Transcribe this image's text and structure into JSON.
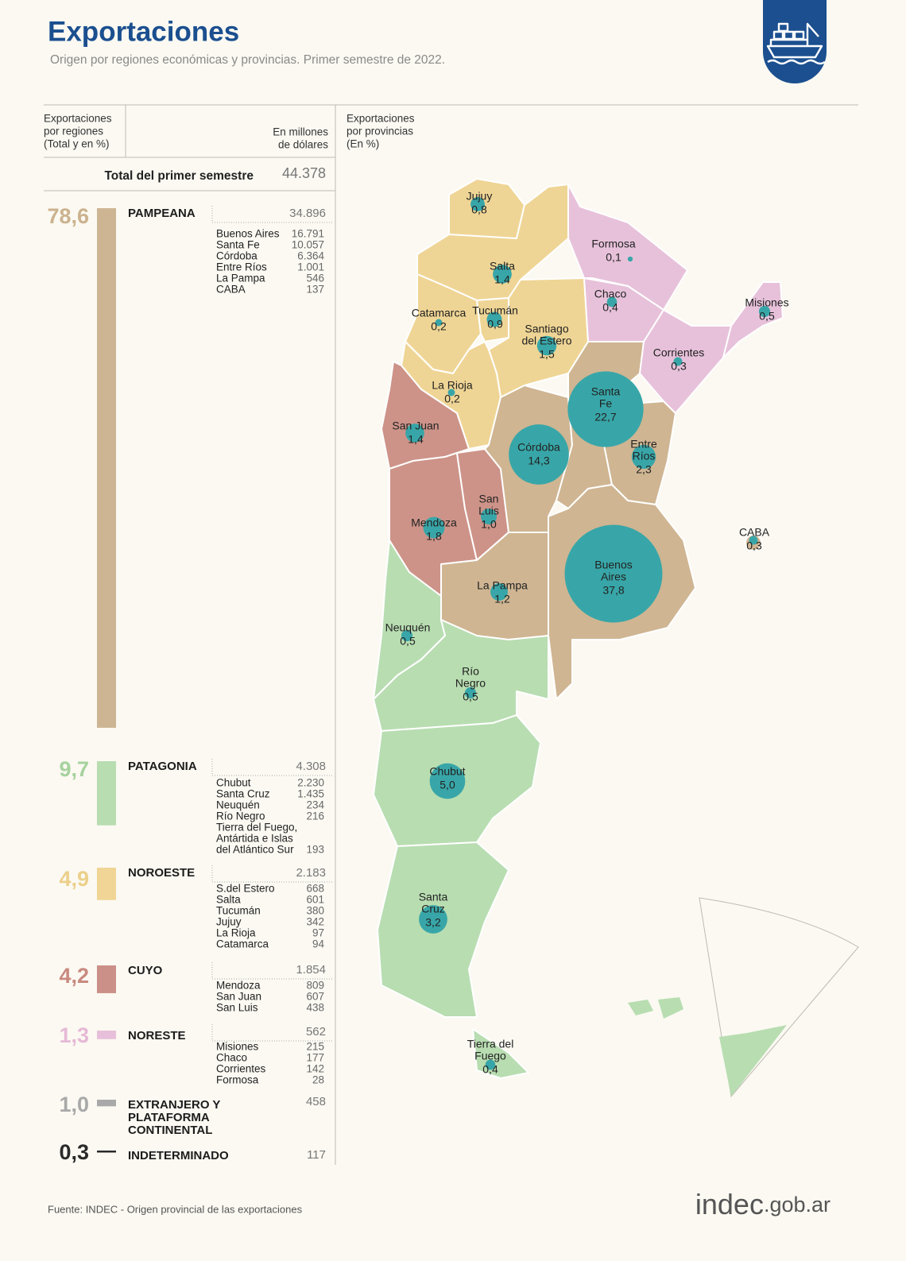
{
  "header": {
    "title": "Exportaciones",
    "subtitle": "Origen por regiones económicas y provincias. Primer semestre de 2022."
  },
  "columns": {
    "regions": [
      "Exportaciones",
      "por regiones",
      "(Total y en %)"
    ],
    "units": [
      "En millones",
      "de dólares"
    ],
    "provinces": [
      "Exportaciones",
      "por provincias",
      "(En %)"
    ]
  },
  "total": {
    "label": "Total del primer semestre",
    "value": "44.378"
  },
  "regions": [
    {
      "name": [
        "PAMPEANA"
      ],
      "pct": 78.6,
      "pct_label": "78,6",
      "total": "34.896",
      "color": "#cdb594",
      "label_color": "#cbb28e",
      "provinces": [
        {
          "name": [
            "Buenos Aires"
          ],
          "value": "16.791"
        },
        {
          "name": [
            "Santa Fe"
          ],
          "value": "10.057"
        },
        {
          "name": [
            "Córdoba"
          ],
          "value": "6.364"
        },
        {
          "name": [
            "Entre Ríos"
          ],
          "value": "1.001"
        },
        {
          "name": [
            "La Pampa"
          ],
          "value": "546"
        },
        {
          "name": [
            "CABA"
          ],
          "value": "137"
        }
      ]
    },
    {
      "name": [
        "PATAGONIA"
      ],
      "pct": 9.7,
      "pct_label": "9,7",
      "total": "4.308",
      "color": "#b7ddb0",
      "label_color": "#a6d29e",
      "provinces": [
        {
          "name": [
            "Chubut"
          ],
          "value": "2.230"
        },
        {
          "name": [
            "Santa Cruz"
          ],
          "value": "1.435"
        },
        {
          "name": [
            "Neuquén"
          ],
          "value": "234"
        },
        {
          "name": [
            "Río Negro"
          ],
          "value": "216"
        },
        {
          "name": [
            "Tierra del Fuego,",
            "Antártida e Islas",
            "del Atlántico Sur"
          ],
          "value": "193"
        }
      ]
    },
    {
      "name": [
        "NOROESTE"
      ],
      "pct": 4.9,
      "pct_label": "4,9",
      "total": "2.183",
      "color": "#f0d596",
      "label_color": "#ecd08a",
      "provinces": [
        {
          "name": [
            "S.del Estero"
          ],
          "value": "668"
        },
        {
          "name": [
            "Salta"
          ],
          "value": "601"
        },
        {
          "name": [
            "Tucumán"
          ],
          "value": "380"
        },
        {
          "name": [
            "Jujuy"
          ],
          "value": "342"
        },
        {
          "name": [
            "La Rioja"
          ],
          "value": "97"
        },
        {
          "name": [
            "Catamarca"
          ],
          "value": "94"
        }
      ]
    },
    {
      "name": [
        "CUYO"
      ],
      "pct": 4.2,
      "pct_label": "4,2",
      "total": "1.854",
      "color": "#cb9087",
      "label_color": "#c98a80",
      "provinces": [
        {
          "name": [
            "Mendoza"
          ],
          "value": "809"
        },
        {
          "name": [
            "San Juan"
          ],
          "value": "607"
        },
        {
          "name": [
            "San Luis"
          ],
          "value": "438"
        }
      ]
    },
    {
      "name": [
        "NORESTE"
      ],
      "pct": 1.3,
      "pct_label": "1,3",
      "total": "562",
      "color": "#e8bfda",
      "label_color": "#e6b9d6",
      "provinces": [
        {
          "name": [
            "Misiones"
          ],
          "value": "215"
        },
        {
          "name": [
            "Chaco"
          ],
          "value": "177"
        },
        {
          "name": [
            "Corrientes"
          ],
          "value": "142"
        },
        {
          "name": [
            "Formosa"
          ],
          "value": "28"
        }
      ]
    },
    {
      "name": [
        "EXTRANJERO Y",
        "PLATAFORMA",
        "CONTINENTAL"
      ],
      "pct": 1.0,
      "pct_label": "1,0",
      "total": "458",
      "color": "#a9a9a9",
      "label_color": "#a9a9a9",
      "provinces": []
    },
    {
      "name": [
        "INDETERMINADO"
      ],
      "pct": 0.3,
      "pct_label": "0,3",
      "total": "117",
      "color": "#2a2a2a",
      "label_color": "#2a2a2a",
      "provinces": []
    }
  ],
  "map": {
    "bubble_color": "#38a6a8",
    "provinces": [
      {
        "name": [
          "Jujuy"
        ],
        "value": 0.8,
        "label": "0,8"
      },
      {
        "name": [
          "Salta"
        ],
        "value": 1.4,
        "label": "1,4"
      },
      {
        "name": [
          "Formosa"
        ],
        "value": 0.1,
        "label": "0,1"
      },
      {
        "name": [
          "Chaco"
        ],
        "value": 0.4,
        "label": "0,4"
      },
      {
        "name": [
          "Misiones"
        ],
        "value": 0.5,
        "label": "0,5"
      },
      {
        "name": [
          "Catamarca"
        ],
        "value": 0.2,
        "label": "0,2"
      },
      {
        "name": [
          "Tucumán"
        ],
        "value": 0.9,
        "label": "0,9"
      },
      {
        "name": [
          "Santiago",
          "del Estero"
        ],
        "value": 1.5,
        "label": "1,5"
      },
      {
        "name": [
          "Corrientes"
        ],
        "value": 0.3,
        "label": "0,3"
      },
      {
        "name": [
          "La Rioja"
        ],
        "value": 0.2,
        "label": "0,2"
      },
      {
        "name": [
          "Santa",
          "Fe"
        ],
        "value": 22.7,
        "label": "22,7"
      },
      {
        "name": [
          "San Juan"
        ],
        "value": 1.4,
        "label": "1,4"
      },
      {
        "name": [
          "Córdoba"
        ],
        "value": 14.3,
        "label": "14,3"
      },
      {
        "name": [
          "Entre",
          "Ríos"
        ],
        "value": 2.3,
        "label": "2,3"
      },
      {
        "name": [
          "San",
          "Luis"
        ],
        "value": 1.0,
        "label": "1,0"
      },
      {
        "name": [
          "Mendoza"
        ],
        "value": 1.8,
        "label": "1,8"
      },
      {
        "name": [
          "CABA"
        ],
        "value": 0.3,
        "label": "0,3"
      },
      {
        "name": [
          "Buenos",
          "Aires"
        ],
        "value": 37.8,
        "label": "37,8"
      },
      {
        "name": [
          "La Pampa"
        ],
        "value": 1.2,
        "label": "1,2"
      },
      {
        "name": [
          "Neuquén"
        ],
        "value": 0.5,
        "label": "0,5"
      },
      {
        "name": [
          "Río",
          "Negro"
        ],
        "value": 0.5,
        "label": "0,5"
      },
      {
        "name": [
          "Chubut"
        ],
        "value": 5.0,
        "label": "5,0"
      },
      {
        "name": [
          "Santa",
          "Cruz"
        ],
        "value": 3.2,
        "label": "3,2"
      },
      {
        "name": [
          "Tierra del",
          "Fuego"
        ],
        "value": 0.4,
        "label": "0,4"
      }
    ]
  },
  "footer": {
    "source": "Fuente: INDEC - Origen provincial de las exportaciones",
    "logo_main": "indec",
    "logo_domain": ".gob.ar"
  }
}
